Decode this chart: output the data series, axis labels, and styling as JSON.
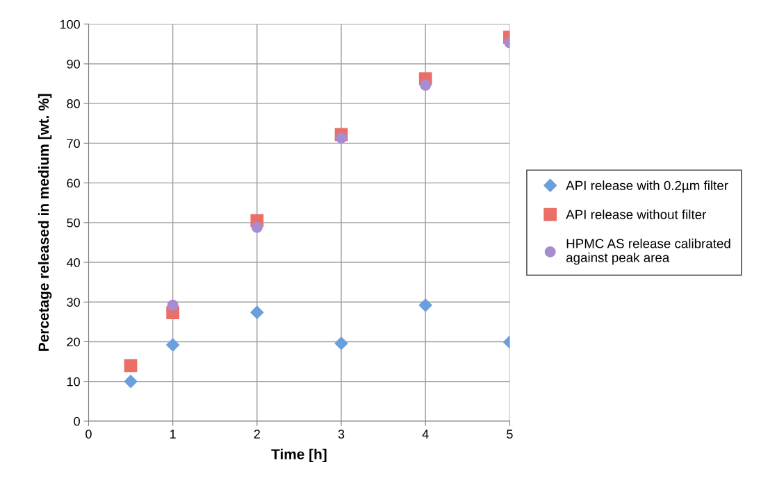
{
  "chart_data": {
    "type": "scatter",
    "xlabel": "Time [h]",
    "ylabel": "Percetage released in medium [wt. %]",
    "xlim": [
      0,
      5
    ],
    "xticks": [
      0,
      1,
      2,
      3,
      4,
      5
    ],
    "ylim": [
      0,
      100
    ],
    "yticks": [
      0,
      10,
      20,
      30,
      40,
      50,
      60,
      70,
      80,
      90,
      100
    ],
    "grid": true,
    "legend": "right",
    "series": [
      {
        "name": "API release with 0.2µm filter",
        "color": "#6a9fdc",
        "marker": "diamond",
        "x": [
          0.5,
          1,
          2,
          3,
          4,
          5
        ],
        "values": [
          10.0,
          19.2,
          27.4,
          19.6,
          29.2,
          19.9
        ]
      },
      {
        "name": "API release without filter",
        "color": "#ea6f68",
        "marker": "square",
        "x": [
          0.5,
          1,
          2,
          3,
          4,
          5
        ],
        "values": [
          14.0,
          27.3,
          50.5,
          72.2,
          86.2,
          96.7
        ]
      },
      {
        "name": "HPMC AS release calibrated\nagainst peak area",
        "color": "#a88cd2",
        "marker": "circle",
        "x": [
          1,
          2,
          3,
          4,
          5
        ],
        "values": [
          29.2,
          48.8,
          71.3,
          84.6,
          95.3
        ]
      }
    ]
  }
}
